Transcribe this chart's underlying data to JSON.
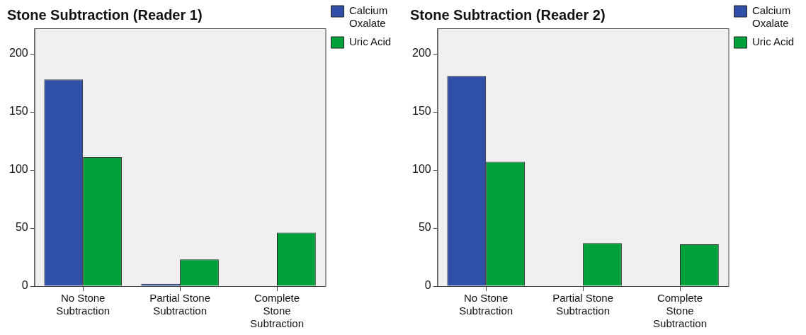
{
  "chart_data": [
    {
      "type": "bar",
      "title": "Stone Subtraction (Reader 1)",
      "categories": [
        "No Stone Subtraction",
        "Partial Stone Subtraction",
        "Complete Stone Subtraction"
      ],
      "series": [
        {
          "name": "Calcium Oxalate",
          "color": "#3050a8",
          "values": [
            178,
            2,
            0
          ]
        },
        {
          "name": "Uric Acid",
          "color": "#00a03a",
          "values": [
            111,
            23,
            46
          ]
        }
      ],
      "ylim": [
        0,
        222
      ],
      "yticks": [
        0,
        50,
        100,
        150,
        200
      ],
      "grid": false,
      "legend": "top right"
    },
    {
      "type": "bar",
      "title": "Stone Subtraction (Reader 2)",
      "categories": [
        "No Stone Subtraction",
        "Partial Stone Subtraction",
        "Complete Stone Subtraction"
      ],
      "series": [
        {
          "name": "Calcium Oxalate",
          "color": "#3050a8",
          "values": [
            181,
            0,
            0
          ]
        },
        {
          "name": "Uric Acid",
          "color": "#00a03a",
          "values": [
            107,
            37,
            36
          ]
        }
      ],
      "ylim": [
        0,
        222
      ],
      "yticks": [
        0,
        50,
        100,
        150,
        200
      ],
      "grid": false,
      "legend": "top right"
    }
  ]
}
